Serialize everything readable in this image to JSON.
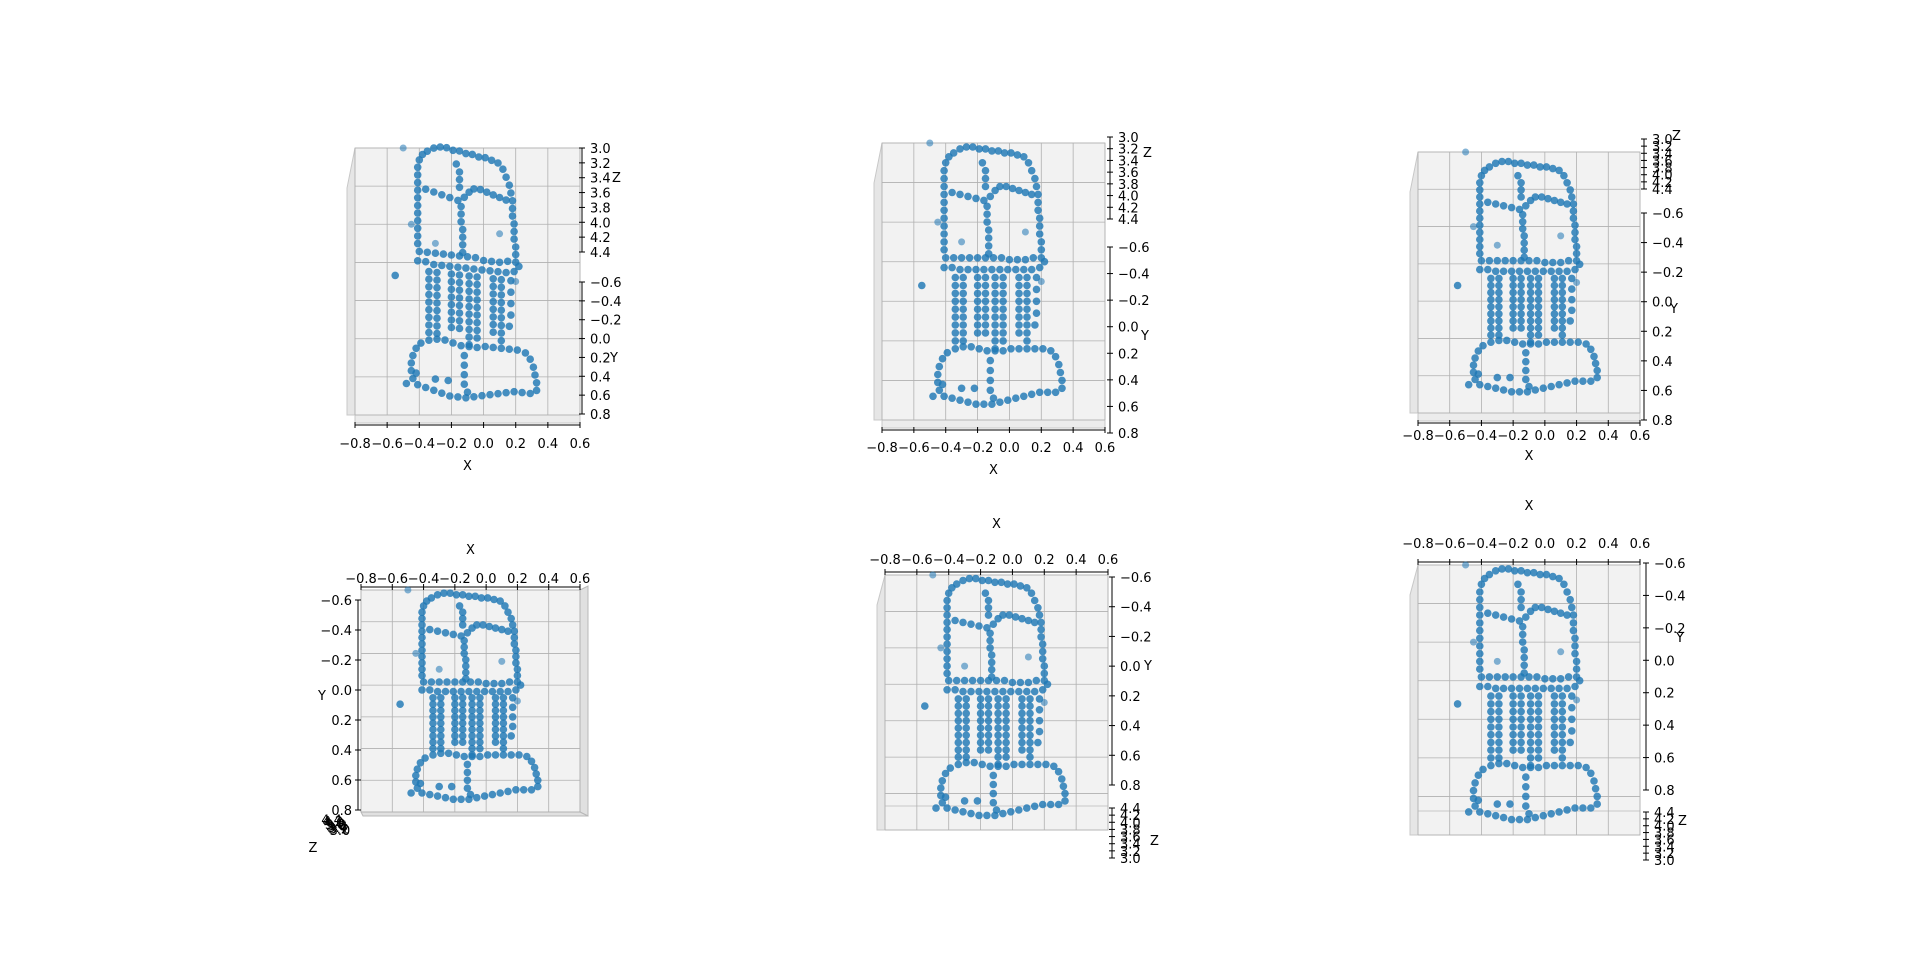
{
  "figure": {
    "panel_count": 6,
    "marker_color": "#1f77b4",
    "pane_color": "#f2f2f2",
    "grid_color": "#b0b0b0"
  },
  "chart_data": [
    {
      "type": "scatter",
      "projection": "3d",
      "view": "front, slightly from above",
      "xlabel": "X",
      "ylabel": "Y",
      "zlabel": "Z",
      "xlim": [
        -0.8,
        0.6
      ],
      "ylim": [
        -0.6,
        0.8
      ],
      "zlim": [
        3.0,
        4.4
      ],
      "xticks": [
        "−0.8",
        "−0.6",
        "−0.4",
        "−0.2",
        "0.0",
        "0.2",
        "0.4",
        "0.6"
      ],
      "yticks": [
        "−0.6",
        "−0.4",
        "−0.2",
        "0.0",
        "0.2",
        "0.4",
        "0.6",
        "0.8"
      ],
      "zticks": [
        "3.0",
        "3.2",
        "3.4",
        "3.6",
        "3.8",
        "4.0",
        "4.2",
        "4.4"
      ]
    },
    {
      "type": "scatter",
      "projection": "3d",
      "view": "front",
      "xlabel": "X",
      "ylabel": "Y",
      "zlabel": "Z",
      "xlim": [
        -0.8,
        0.6
      ],
      "ylim": [
        -0.6,
        0.8
      ],
      "zlim": [
        3.0,
        4.4
      ],
      "xticks": [
        "−0.8",
        "−0.6",
        "−0.4",
        "−0.2",
        "0.0",
        "0.2",
        "0.4",
        "0.6"
      ],
      "yticks": [
        "−0.6",
        "−0.4",
        "−0.2",
        "0.0",
        "0.2",
        "0.4",
        "0.6",
        "0.8"
      ],
      "zticks": [
        "3.0",
        "3.2",
        "3.4",
        "3.6",
        "3.8",
        "4.0",
        "4.2",
        "4.4"
      ]
    },
    {
      "type": "scatter",
      "projection": "3d",
      "view": "front, slightly from below",
      "xlabel": "X",
      "ylabel": "Y",
      "zlabel": "Z",
      "xlim": [
        -0.8,
        0.6
      ],
      "ylim": [
        -0.6,
        0.8
      ],
      "zlim": [
        3.0,
        4.4
      ],
      "xticks": [
        "−0.8",
        "−0.6",
        "−0.4",
        "−0.2",
        "0.0",
        "0.2",
        "0.4",
        "0.6"
      ],
      "yticks": [
        "−0.6",
        "−0.4",
        "−0.2",
        "0.0",
        "0.2",
        "0.4",
        "0.6",
        "0.8"
      ],
      "zticks": [
        "3.0",
        "3.2",
        "3.4",
        "3.6",
        "3.8",
        "4.0",
        "4.2",
        "4.4"
      ]
    },
    {
      "type": "scatter",
      "projection": "3d",
      "view": "front, top-down",
      "xlabel": "X",
      "ylabel": "Y",
      "zlabel": "Z",
      "xlim": [
        -0.8,
        0.6
      ],
      "ylim": [
        -0.6,
        0.8
      ],
      "zlim": [
        3.0,
        4.4
      ],
      "xticks": [
        "−0.8",
        "−0.6",
        "−0.4",
        "−0.2",
        "0.0",
        "0.2",
        "0.4",
        "0.6"
      ],
      "yticks": [
        "−0.6",
        "−0.4",
        "−0.2",
        "0.0",
        "0.2",
        "0.4",
        "0.6",
        "0.8"
      ],
      "zticks": [
        "3.0",
        "3.2",
        "3.4",
        "3.6",
        "3.8",
        "4.0",
        "4.2",
        "4.4"
      ]
    },
    {
      "type": "scatter",
      "projection": "3d",
      "view": "front, upside-down axes",
      "xlabel": "X",
      "ylabel": "Y",
      "zlabel": "Z",
      "xlim": [
        -0.8,
        0.6
      ],
      "ylim": [
        -0.6,
        0.8
      ],
      "zlim": [
        3.0,
        4.4
      ],
      "xticks": [
        "−0.8",
        "−0.6",
        "−0.4",
        "−0.2",
        "0.0",
        "0.2",
        "0.4",
        "0.6"
      ],
      "yticks": [
        "−0.6",
        "−0.4",
        "−0.2",
        "0.0",
        "0.2",
        "0.4",
        "0.6",
        "0.8"
      ],
      "zticks": [
        "3.0",
        "3.2",
        "3.4",
        "3.6",
        "3.8",
        "4.0",
        "4.2",
        "4.4"
      ]
    },
    {
      "type": "scatter",
      "projection": "3d",
      "view": "front, upside-down axes, from below",
      "xlabel": "X",
      "ylabel": "Y",
      "zlabel": "Z",
      "xlim": [
        -0.8,
        0.6
      ],
      "ylim": [
        -0.6,
        0.8
      ],
      "zlim": [
        3.0,
        4.4
      ],
      "xticks": [
        "−0.8",
        "−0.6",
        "−0.4",
        "−0.2",
        "0.0",
        "0.2",
        "0.4",
        "0.6"
      ],
      "yticks": [
        "−0.6",
        "−0.4",
        "−0.2",
        "0.0",
        "0.2",
        "0.4",
        "0.6",
        "0.8"
      ],
      "zticks": [
        "3.0",
        "3.2",
        "3.4",
        "3.6",
        "3.8",
        "4.0",
        "4.2",
        "4.4"
      ]
    }
  ],
  "shape_points": [
    [
      -0.35,
      -0.55
    ],
    [
      -0.31,
      -0.57
    ],
    [
      -0.27,
      -0.58
    ],
    [
      -0.23,
      -0.58
    ],
    [
      -0.19,
      -0.57
    ],
    [
      -0.15,
      -0.57
    ],
    [
      -0.11,
      -0.56
    ],
    [
      -0.07,
      -0.56
    ],
    [
      -0.03,
      -0.55
    ],
    [
      0.01,
      -0.55
    ],
    [
      0.05,
      -0.54
    ],
    [
      0.09,
      -0.53
    ],
    [
      0.12,
      -0.5
    ],
    [
      0.14,
      -0.46
    ],
    [
      0.16,
      -0.42
    ],
    [
      0.17,
      -0.38
    ],
    [
      0.18,
      -0.34
    ],
    [
      0.18,
      -0.3
    ],
    [
      0.18,
      -0.26
    ],
    [
      0.19,
      -0.22
    ],
    [
      0.19,
      -0.18
    ],
    [
      0.19,
      -0.14
    ],
    [
      0.2,
      -0.1
    ],
    [
      0.2,
      -0.06
    ],
    [
      0.2,
      -0.02
    ],
    [
      0.15,
      -0.02
    ],
    [
      0.1,
      -0.01
    ],
    [
      0.05,
      -0.01
    ],
    [
      0.0,
      -0.01
    ],
    [
      -0.05,
      -0.02
    ],
    [
      -0.1,
      -0.02
    ],
    [
      -0.15,
      -0.02
    ],
    [
      -0.2,
      -0.02
    ],
    [
      -0.25,
      -0.02
    ],
    [
      -0.3,
      -0.02
    ],
    [
      -0.35,
      -0.02
    ],
    [
      -0.4,
      -0.02
    ],
    [
      -0.41,
      -0.06
    ],
    [
      -0.41,
      -0.1
    ],
    [
      -0.41,
      -0.14
    ],
    [
      -0.41,
      -0.18
    ],
    [
      -0.41,
      -0.22
    ],
    [
      -0.41,
      -0.26
    ],
    [
      -0.41,
      -0.3
    ],
    [
      -0.41,
      -0.34
    ],
    [
      -0.41,
      -0.38
    ],
    [
      -0.41,
      -0.42
    ],
    [
      -0.41,
      -0.46
    ],
    [
      -0.4,
      -0.5
    ],
    [
      -0.38,
      -0.53
    ],
    [
      -0.36,
      -0.35
    ],
    [
      -0.31,
      -0.34
    ],
    [
      -0.26,
      -0.33
    ],
    [
      -0.21,
      -0.32
    ],
    [
      -0.16,
      -0.31
    ],
    [
      -0.12,
      -0.33
    ],
    [
      -0.09,
      -0.36
    ],
    [
      -0.06,
      -0.38
    ],
    [
      -0.02,
      -0.38
    ],
    [
      0.02,
      -0.37
    ],
    [
      0.06,
      -0.36
    ],
    [
      0.1,
      -0.35
    ],
    [
      0.14,
      -0.34
    ],
    [
      -0.14,
      -0.28
    ],
    [
      -0.14,
      -0.24
    ],
    [
      -0.14,
      -0.2
    ],
    [
      -0.13,
      -0.16
    ],
    [
      -0.13,
      -0.12
    ],
    [
      -0.13,
      -0.08
    ],
    [
      -0.13,
      -0.04
    ],
    [
      -0.17,
      -0.5
    ],
    [
      -0.15,
      -0.46
    ],
    [
      -0.15,
      -0.42
    ],
    [
      -0.15,
      -0.38
    ],
    [
      -0.41,
      0.03
    ],
    [
      -0.36,
      0.03
    ],
    [
      -0.31,
      0.04
    ],
    [
      -0.26,
      0.04
    ],
    [
      -0.21,
      0.04
    ],
    [
      -0.16,
      0.04
    ],
    [
      -0.11,
      0.04
    ],
    [
      -0.06,
      0.04
    ],
    [
      -0.01,
      0.04
    ],
    [
      0.04,
      0.04
    ],
    [
      0.09,
      0.04
    ],
    [
      0.14,
      0.04
    ],
    [
      0.19,
      0.03
    ],
    [
      0.22,
      0.0
    ],
    [
      -0.34,
      0.08
    ],
    [
      -0.34,
      0.12
    ],
    [
      -0.34,
      0.16
    ],
    [
      -0.34,
      0.2
    ],
    [
      -0.34,
      0.24
    ],
    [
      -0.34,
      0.28
    ],
    [
      -0.34,
      0.32
    ],
    [
      -0.34,
      0.36
    ],
    [
      -0.34,
      0.4
    ],
    [
      -0.29,
      0.08
    ],
    [
      -0.29,
      0.12
    ],
    [
      -0.29,
      0.16
    ],
    [
      -0.29,
      0.2
    ],
    [
      -0.29,
      0.24
    ],
    [
      -0.29,
      0.28
    ],
    [
      -0.29,
      0.32
    ],
    [
      -0.29,
      0.36
    ],
    [
      -0.29,
      0.4
    ],
    [
      -0.2,
      0.08
    ],
    [
      -0.2,
      0.12
    ],
    [
      -0.2,
      0.16
    ],
    [
      -0.2,
      0.2
    ],
    [
      -0.2,
      0.24
    ],
    [
      -0.2,
      0.28
    ],
    [
      -0.2,
      0.32
    ],
    [
      -0.2,
      0.36
    ],
    [
      -0.15,
      0.08
    ],
    [
      -0.15,
      0.12
    ],
    [
      -0.15,
      0.16
    ],
    [
      -0.15,
      0.2
    ],
    [
      -0.15,
      0.24
    ],
    [
      -0.15,
      0.28
    ],
    [
      -0.15,
      0.32
    ],
    [
      -0.15,
      0.36
    ],
    [
      -0.09,
      0.08
    ],
    [
      -0.09,
      0.12
    ],
    [
      -0.09,
      0.16
    ],
    [
      -0.09,
      0.2
    ],
    [
      -0.09,
      0.24
    ],
    [
      -0.09,
      0.28
    ],
    [
      -0.09,
      0.32
    ],
    [
      -0.09,
      0.36
    ],
    [
      -0.09,
      0.4
    ],
    [
      -0.09,
      0.44
    ],
    [
      -0.04,
      0.08
    ],
    [
      -0.04,
      0.12
    ],
    [
      -0.04,
      0.16
    ],
    [
      -0.04,
      0.2
    ],
    [
      -0.04,
      0.24
    ],
    [
      -0.04,
      0.28
    ],
    [
      -0.04,
      0.32
    ],
    [
      -0.04,
      0.36
    ],
    [
      -0.04,
      0.4
    ],
    [
      0.06,
      0.08
    ],
    [
      0.06,
      0.12
    ],
    [
      0.06,
      0.16
    ],
    [
      0.06,
      0.2
    ],
    [
      0.06,
      0.24
    ],
    [
      0.06,
      0.28
    ],
    [
      0.06,
      0.32
    ],
    [
      0.06,
      0.36
    ],
    [
      0.11,
      0.08
    ],
    [
      0.11,
      0.12
    ],
    [
      0.11,
      0.16
    ],
    [
      0.11,
      0.2
    ],
    [
      0.11,
      0.24
    ],
    [
      0.11,
      0.28
    ],
    [
      0.11,
      0.32
    ],
    [
      0.11,
      0.36
    ],
    [
      0.11,
      0.4
    ],
    [
      0.17,
      0.08
    ],
    [
      0.17,
      0.14
    ],
    [
      0.17,
      0.2
    ],
    [
      0.17,
      0.26
    ],
    [
      0.16,
      0.32
    ],
    [
      -0.39,
      0.46
    ],
    [
      -0.34,
      0.44
    ],
    [
      -0.29,
      0.43
    ],
    [
      -0.24,
      0.43
    ],
    [
      -0.19,
      0.44
    ],
    [
      -0.14,
      0.45
    ],
    [
      -0.09,
      0.45
    ],
    [
      -0.04,
      0.45
    ],
    [
      0.01,
      0.44
    ],
    [
      0.06,
      0.44
    ],
    [
      0.11,
      0.44
    ],
    [
      0.16,
      0.44
    ],
    [
      0.21,
      0.44
    ],
    [
      0.26,
      0.45
    ],
    [
      0.29,
      0.48
    ],
    [
      0.31,
      0.52
    ],
    [
      0.32,
      0.56
    ],
    [
      0.33,
      0.6
    ],
    [
      0.33,
      0.64
    ],
    [
      0.29,
      0.66
    ],
    [
      0.24,
      0.66
    ],
    [
      0.19,
      0.66
    ],
    [
      0.14,
      0.67
    ],
    [
      0.09,
      0.68
    ],
    [
      0.04,
      0.69
    ],
    [
      -0.01,
      0.7
    ],
    [
      -0.06,
      0.71
    ],
    [
      -0.11,
      0.72
    ],
    [
      -0.16,
      0.72
    ],
    [
      -0.21,
      0.72
    ],
    [
      -0.26,
      0.71
    ],
    [
      -0.31,
      0.7
    ],
    [
      -0.36,
      0.69
    ],
    [
      -0.41,
      0.68
    ],
    [
      -0.44,
      0.65
    ],
    [
      -0.45,
      0.61
    ],
    [
      -0.45,
      0.57
    ],
    [
      -0.44,
      0.53
    ],
    [
      -0.42,
      0.49
    ],
    [
      -0.12,
      0.5
    ],
    [
      -0.12,
      0.55
    ],
    [
      -0.12,
      0.6
    ],
    [
      -0.12,
      0.65
    ],
    [
      -0.1,
      0.69
    ],
    [
      -0.42,
      0.62
    ],
    [
      -0.48,
      0.68
    ],
    [
      -0.55,
      0.12
    ],
    [
      -0.22,
      0.64
    ],
    [
      -0.3,
      0.64
    ]
  ],
  "top_grid_points": [
    [
      -0.5,
      -0.6
    ],
    [
      -0.45,
      -0.2
    ],
    [
      -0.3,
      -0.1
    ],
    [
      0.1,
      -0.15
    ],
    [
      0.2,
      0.1
    ]
  ]
}
